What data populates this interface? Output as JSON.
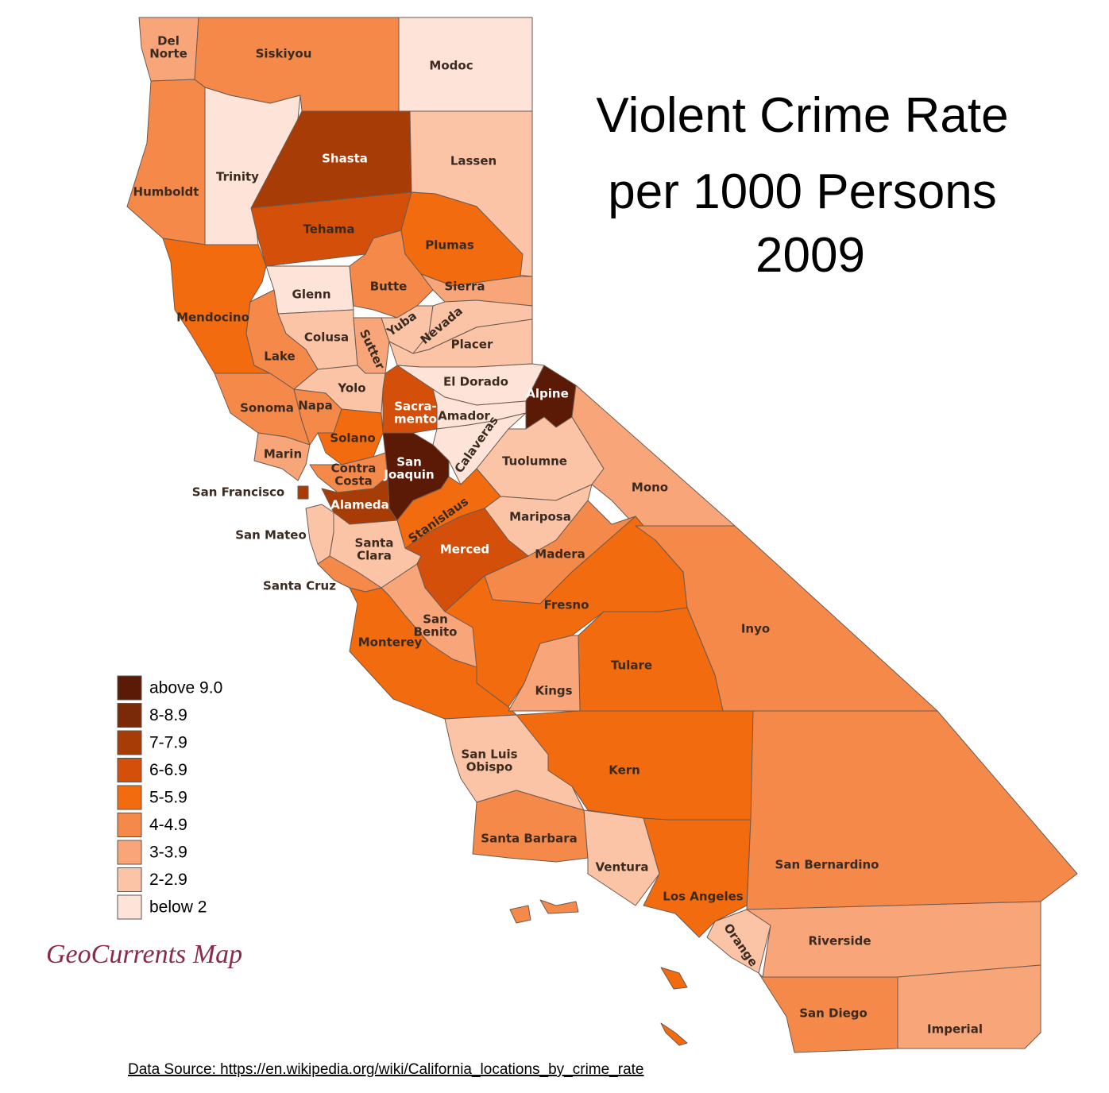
{
  "title": [
    "Violent Crime Rate",
    "per 1000 Persons",
    "2009"
  ],
  "legend": [
    {
      "label": "above 9.0",
      "color": "#5a1a06"
    },
    {
      "label": "8-8.9",
      "color": "#7a2a08"
    },
    {
      "label": "7-7.9",
      "color": "#a83c06"
    },
    {
      "label": "6-6.9",
      "color": "#d4500a"
    },
    {
      "label": "5-5.9",
      "color": "#f26b0f"
    },
    {
      "label": "4-4.9",
      "color": "#f5894a"
    },
    {
      "label": "3-3.9",
      "color": "#f8a57a"
    },
    {
      "label": "2-2.9",
      "color": "#fbc4a6"
    },
    {
      "label": "below 2",
      "color": "#fde3d8"
    }
  ],
  "counties": [
    {
      "name": [
        "Del",
        "Norte"
      ],
      "color": "#f8a57a"
    },
    {
      "name": [
        "Siskiyou"
      ],
      "color": "#f5894a"
    },
    {
      "name": [
        "Modoc"
      ],
      "color": "#fde3d8"
    },
    {
      "name": [
        "Humboldt"
      ],
      "color": "#f5894a"
    },
    {
      "name": [
        "Trinity"
      ],
      "color": "#fde3d8"
    },
    {
      "name": [
        "Shasta"
      ],
      "color": "#a83c06"
    },
    {
      "name": [
        "Lassen"
      ],
      "color": "#fbc4a6"
    },
    {
      "name": [
        "Tehama"
      ],
      "color": "#d4500a"
    },
    {
      "name": [
        "Plumas"
      ],
      "color": "#f26b0f"
    },
    {
      "name": [
        "Mendocino"
      ],
      "color": "#f26b0f"
    },
    {
      "name": [
        "Glenn"
      ],
      "color": "#fde3d8"
    },
    {
      "name": [
        "Butte"
      ],
      "color": "#f5894a"
    },
    {
      "name": [
        "Sierra"
      ],
      "color": "#f8a57a"
    },
    {
      "name": [
        "Colusa"
      ],
      "color": "#fbc4a6"
    },
    {
      "name": [
        "Lake"
      ],
      "color": "#f5894a"
    },
    {
      "name": [
        "Sutter"
      ],
      "color": "#f8a57a"
    },
    {
      "name": [
        "Yuba"
      ],
      "color": "#fbc4a6"
    },
    {
      "name": [
        "Nevada"
      ],
      "color": "#fbc4a6"
    },
    {
      "name": [
        "Placer"
      ],
      "color": "#fbc4a6"
    },
    {
      "name": [
        "El Dorado"
      ],
      "color": "#fde3d8"
    },
    {
      "name": [
        "Alpine"
      ],
      "color": "#5a1a06"
    },
    {
      "name": [
        "Yolo"
      ],
      "color": "#fbc4a6"
    },
    {
      "name": [
        "Sonoma"
      ],
      "color": "#f5894a"
    },
    {
      "name": [
        "Napa"
      ],
      "color": "#f5894a"
    },
    {
      "name": [
        "Sacra-",
        "mento"
      ],
      "color": "#d4500a"
    },
    {
      "name": [
        "Amador"
      ],
      "color": "#fde3d8"
    },
    {
      "name": [
        "Solano"
      ],
      "color": "#f26b0f"
    },
    {
      "name": [
        "Marin"
      ],
      "color": "#f8a57a"
    },
    {
      "name": [
        "Calaveras"
      ],
      "color": "#fde3d8"
    },
    {
      "name": [
        "Tuolumne"
      ],
      "color": "#fbc4a6"
    },
    {
      "name": [
        "Mono"
      ],
      "color": "#f8a57a"
    },
    {
      "name": [
        "San",
        "Joaquin"
      ],
      "color": "#5a1a06"
    },
    {
      "name": [
        "Contra",
        "Costa"
      ],
      "color": "#f5894a"
    },
    {
      "name": [
        "San Francisco"
      ],
      "color": "#a83c06"
    },
    {
      "name": [
        "Alameda"
      ],
      "color": "#a83c06"
    },
    {
      "name": [
        "Stanislaus"
      ],
      "color": "#f26b0f"
    },
    {
      "name": [
        "Mariposa"
      ],
      "color": "#fbc4a6"
    },
    {
      "name": [
        "San Mateo"
      ],
      "color": "#fbc4a6"
    },
    {
      "name": [
        "Santa",
        "Clara"
      ],
      "color": "#fbc4a6"
    },
    {
      "name": [
        "Merced"
      ],
      "color": "#d4500a"
    },
    {
      "name": [
        "Madera"
      ],
      "color": "#f5894a"
    },
    {
      "name": [
        "Santa Cruz"
      ],
      "color": "#f5894a"
    },
    {
      "name": [
        "Fresno"
      ],
      "color": "#f26b0f"
    },
    {
      "name": [
        "Inyo"
      ],
      "color": "#f5894a"
    },
    {
      "name": [
        "San",
        "Benito"
      ],
      "color": "#f8a57a"
    },
    {
      "name": [
        "Monterey"
      ],
      "color": "#f26b0f"
    },
    {
      "name": [
        "Tulare"
      ],
      "color": "#f26b0f"
    },
    {
      "name": [
        "Kings"
      ],
      "color": "#f8a57a"
    },
    {
      "name": [
        "Kern"
      ],
      "color": "#f26b0f"
    },
    {
      "name": [
        "San Luis",
        "Obispo"
      ],
      "color": "#fbc4a6"
    },
    {
      "name": [
        "Santa Barbara"
      ],
      "color": "#f5894a"
    },
    {
      "name": [
        "Ventura"
      ],
      "color": "#fbc4a6"
    },
    {
      "name": [
        "Los Angeles"
      ],
      "color": "#f26b0f"
    },
    {
      "name": [
        "San Bernardino"
      ],
      "color": "#f5894a"
    },
    {
      "name": [
        "Orange"
      ],
      "color": "#fbc4a6"
    },
    {
      "name": [
        "Riverside"
      ],
      "color": "#f8a57a"
    },
    {
      "name": [
        "San Diego"
      ],
      "color": "#f5894a"
    },
    {
      "name": [
        "Imperial"
      ],
      "color": "#f8a57a"
    }
  ],
  "credit": "GeoCurrents Map",
  "source": "Data Source: https://en.wikipedia.org/wiki/California_locations_by_crime_rate"
}
